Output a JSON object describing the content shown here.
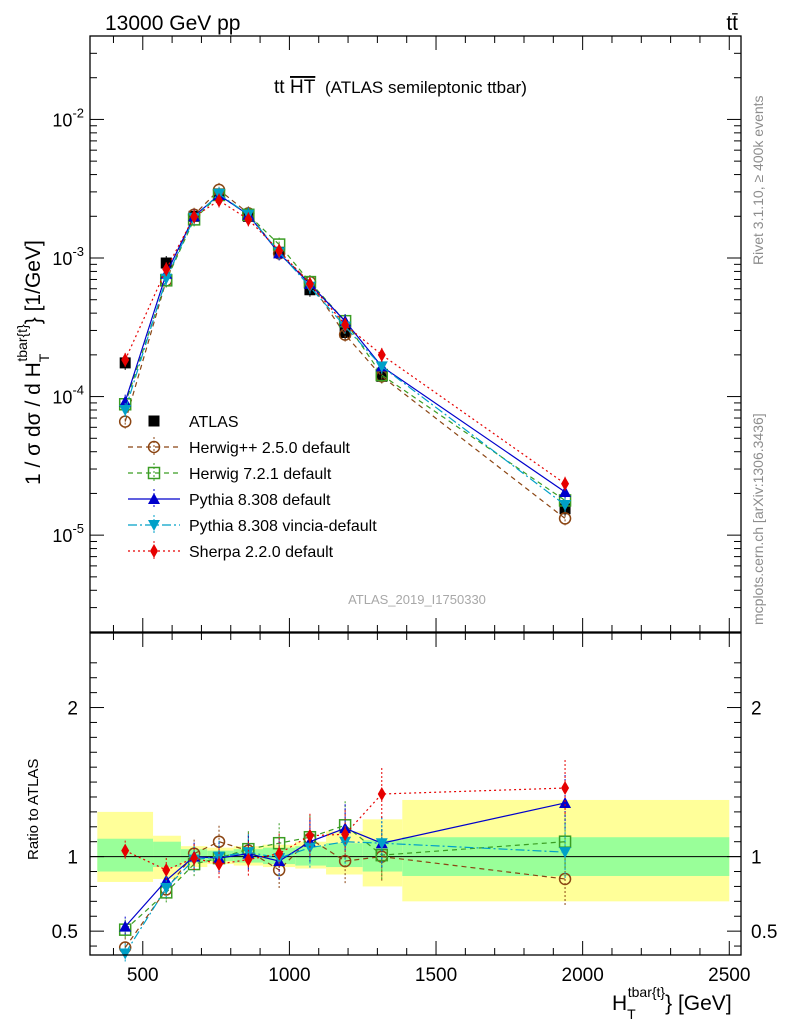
{
  "header": {
    "energy_label": "13000 GeV pp",
    "process_label": "tt̄"
  },
  "side_labels": {
    "rivet": "Rivet 3.1.10, ≥ 400k events",
    "mcplots": "mcplots.cern.ch [arXiv:1306.3436]"
  },
  "colors": {
    "atlas": "#000000",
    "herwigpp": "#8b4513",
    "herwig7": "#3a9d23",
    "pythia": "#0000cc",
    "vincia": "#00a0c8",
    "sherpa": "#e60000",
    "band_inner": "#99ff99",
    "band_outer": "#ffff99"
  },
  "chart_data": [
    {
      "type": "line",
      "panel": "main",
      "title_main": "tt",
      "title_overline": "HT",
      "title_suffix": "(ATLAS semileptonic ttbar)",
      "watermark": "ATLAS_2019_I1750330",
      "ylabel": "1 / σ dσ / d H_T^{tbar{t}} [1/GeV]",
      "yscale": "log",
      "ylim": [
        2e-06,
        0.04
      ],
      "xlim": [
        320,
        2540
      ],
      "ytick_labels": [
        "10^-2",
        "10^-3",
        "10^-4",
        "10^-5"
      ],
      "x": [
        440,
        580,
        675,
        760,
        860,
        965,
        1070,
        1190,
        1315,
        1940
      ],
      "series": [
        {
          "name": "ATLAS",
          "style": "data",
          "values": [
            0.000175,
            0.00092,
            0.002,
            0.0029,
            0.002,
            0.0011,
            0.00059,
            0.00029,
            0.00014,
            1.55e-05
          ]
        },
        {
          "name": "Herwig++ 2.5.0 default",
          "style": "herwigpp",
          "values": [
            6.6e-05,
            0.00069,
            0.00205,
            0.0031,
            0.0021,
            0.00108,
            0.00067,
            0.00028,
            0.00014,
            1.32e-05
          ]
        },
        {
          "name": "Herwig 7.2.1 default",
          "style": "herwig7",
          "values": [
            8.8e-05,
            0.00069,
            0.0019,
            0.00285,
            0.00205,
            0.00125,
            0.00067,
            0.00035,
            0.000143,
            1.78e-05
          ]
        },
        {
          "name": "Pythia 8.308 default",
          "style": "pythia",
          "values": [
            9.2e-05,
            0.00077,
            0.002,
            0.00285,
            0.00205,
            0.00108,
            0.00065,
            0.00035,
            0.000165,
            2.05e-05
          ]
        },
        {
          "name": "Pythia 8.308 vincia-default",
          "style": "vincia",
          "values": [
            8e-05,
            0.00071,
            0.00195,
            0.0029,
            0.00205,
            0.0011,
            0.00062,
            0.00032,
            0.000165,
            1.65e-05
          ]
        },
        {
          "name": "Sherpa 2.2.0 default",
          "style": "sherpa",
          "values": [
            0.000184,
            0.00083,
            0.00199,
            0.0026,
            0.0019,
            0.00113,
            0.00065,
            0.00033,
            0.0002,
            2.35e-05
          ]
        }
      ]
    },
    {
      "type": "line",
      "panel": "ratio",
      "ylabel": "Ratio to ATLAS",
      "xlabel": "H_T^{tbar{t}} [GeV]",
      "ylim": [
        0.34,
        2.5
      ],
      "xlim": [
        320,
        2540
      ],
      "ytick_labels": [
        "2",
        "1",
        "0.5"
      ],
      "xtick_labels": [
        "500",
        "1000",
        "1500",
        "2000",
        "2500"
      ],
      "x": [
        440,
        580,
        675,
        760,
        860,
        965,
        1070,
        1190,
        1315,
        1940
      ],
      "bands": {
        "edges": [
          345,
          535,
          630,
          720,
          810,
          910,
          1020,
          1125,
          1250,
          1385,
          2500
        ],
        "inner": [
          [
            0.9,
            1.12
          ],
          [
            0.93,
            1.1
          ],
          [
            0.96,
            1.05
          ],
          [
            0.97,
            1.04
          ],
          [
            0.96,
            1.05
          ],
          [
            0.95,
            1.06
          ],
          [
            0.94,
            1.07
          ],
          [
            0.93,
            1.09
          ],
          [
            0.9,
            1.11
          ],
          [
            0.87,
            1.13
          ]
        ],
        "outer": [
          [
            0.83,
            1.3
          ],
          [
            0.85,
            1.14
          ],
          [
            0.93,
            1.07
          ],
          [
            0.95,
            1.06
          ],
          [
            0.94,
            1.07
          ],
          [
            0.93,
            1.08
          ],
          [
            0.92,
            1.1
          ],
          [
            0.88,
            1.17
          ],
          [
            0.8,
            1.25
          ],
          [
            0.7,
            1.38
          ]
        ]
      },
      "series": [
        {
          "name": "Herwig++ 2.5.0 default",
          "style": "herwigpp",
          "values": [
            0.39,
            0.78,
            1.02,
            1.1,
            1.04,
            0.91,
            1.12,
            0.97,
            1.0,
            0.85
          ]
        },
        {
          "name": "Herwig 7.2.1 default",
          "style": "herwig7",
          "values": [
            0.51,
            0.76,
            0.95,
            0.99,
            1.05,
            1.09,
            1.13,
            1.21,
            1.01,
            1.1
          ]
        },
        {
          "name": "Pythia 8.308 default",
          "style": "pythia",
          "values": [
            0.53,
            0.84,
            1.0,
            0.99,
            1.02,
            0.97,
            1.1,
            1.19,
            1.09,
            1.36
          ]
        },
        {
          "name": "Pythia 8.308 vincia-default",
          "style": "vincia",
          "values": [
            0.35,
            0.79,
            0.98,
            1.0,
            1.03,
            0.99,
            1.06,
            1.1,
            1.09,
            1.03
          ]
        },
        {
          "name": "Sherpa 2.2.0 default",
          "style": "sherpa",
          "values": [
            1.04,
            0.91,
            0.99,
            0.95,
            0.98,
            1.02,
            1.14,
            1.15,
            1.42,
            1.46
          ]
        }
      ]
    }
  ]
}
